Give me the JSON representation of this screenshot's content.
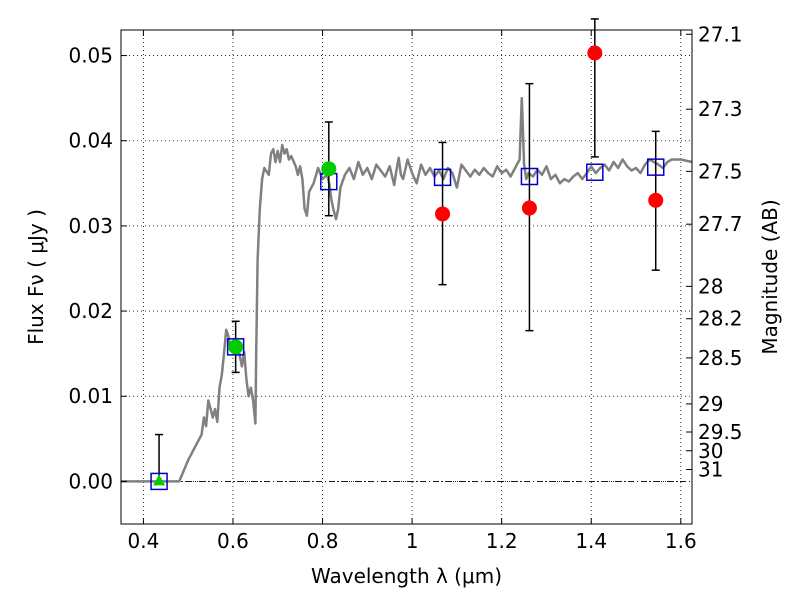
{
  "chart_data": {
    "type": "scatter",
    "xlabel": "Wavelength  λ (μm)",
    "ylabel": "Flux  Fν  ( μJy )",
    "ylabel_right": "Magnitude (AB)",
    "xlim": [
      0.35,
      1.625
    ],
    "ylim": [
      -0.005,
      0.053
    ],
    "grid": true,
    "x_ticks": [
      0.4,
      0.6,
      0.8,
      1.0,
      1.2,
      1.4,
      1.6
    ],
    "x_tick_labels": [
      "0.4",
      "0.6",
      "0.8",
      "1",
      "1.2",
      "1.4",
      "1.6"
    ],
    "y_ticks": [
      0.0,
      0.01,
      0.02,
      0.03,
      0.04,
      0.05
    ],
    "y_tick_labels": [
      "0.00",
      "0.01",
      "0.02",
      "0.03",
      "0.04",
      "0.05"
    ],
    "right_ticks": [
      {
        "label": "27.1",
        "flux": 0.0525
      },
      {
        "label": "27.3",
        "flux": 0.0437
      },
      {
        "label": "27.5",
        "flux": 0.0364
      },
      {
        "label": "27.7",
        "flux": 0.0302
      },
      {
        "label": "28",
        "flux": 0.0229
      },
      {
        "label": "28.2",
        "flux": 0.0191
      },
      {
        "label": "28.5",
        "flux": 0.0145
      },
      {
        "label": "29",
        "flux": 0.0091
      },
      {
        "label": "29.5",
        "flux": 0.0058
      },
      {
        "label": "30",
        "flux": 0.0036
      },
      {
        "label": "31",
        "flux": 0.0014
      }
    ],
    "zero_line": 0.0,
    "model_spectrum": {
      "color": "#808080",
      "points": [
        [
          0.35,
          0.0
        ],
        [
          0.48,
          0.0
        ],
        [
          0.5,
          0.0025
        ],
        [
          0.52,
          0.0045
        ],
        [
          0.53,
          0.0055
        ],
        [
          0.535,
          0.0075
        ],
        [
          0.54,
          0.0065
        ],
        [
          0.545,
          0.0095
        ],
        [
          0.55,
          0.0085
        ],
        [
          0.555,
          0.0075
        ],
        [
          0.56,
          0.0085
        ],
        [
          0.565,
          0.007
        ],
        [
          0.57,
          0.011
        ],
        [
          0.575,
          0.0125
        ],
        [
          0.58,
          0.015
        ],
        [
          0.585,
          0.0178
        ],
        [
          0.59,
          0.017
        ],
        [
          0.595,
          0.0155
        ],
        [
          0.6,
          0.0165
        ],
        [
          0.605,
          0.015
        ],
        [
          0.61,
          0.016
        ],
        [
          0.615,
          0.0148
        ],
        [
          0.62,
          0.0135
        ],
        [
          0.625,
          0.0152
        ],
        [
          0.63,
          0.012
        ],
        [
          0.635,
          0.01
        ],
        [
          0.64,
          0.011
        ],
        [
          0.645,
          0.0095
        ],
        [
          0.65,
          0.0068
        ],
        [
          0.652,
          0.015
        ],
        [
          0.655,
          0.026
        ],
        [
          0.66,
          0.032
        ],
        [
          0.665,
          0.0355
        ],
        [
          0.67,
          0.0368
        ],
        [
          0.68,
          0.036
        ],
        [
          0.685,
          0.0385
        ],
        [
          0.69,
          0.039
        ],
        [
          0.695,
          0.0375
        ],
        [
          0.7,
          0.0388
        ],
        [
          0.705,
          0.0375
        ],
        [
          0.71,
          0.0395
        ],
        [
          0.715,
          0.0385
        ],
        [
          0.72,
          0.039
        ],
        [
          0.725,
          0.0378
        ],
        [
          0.73,
          0.0382
        ],
        [
          0.74,
          0.037
        ],
        [
          0.745,
          0.036
        ],
        [
          0.75,
          0.037
        ],
        [
          0.755,
          0.0355
        ],
        [
          0.76,
          0.032
        ],
        [
          0.765,
          0.0312
        ],
        [
          0.77,
          0.034
        ],
        [
          0.78,
          0.035
        ],
        [
          0.79,
          0.0368
        ],
        [
          0.8,
          0.0355
        ],
        [
          0.81,
          0.036
        ],
        [
          0.815,
          0.035
        ],
        [
          0.82,
          0.033
        ],
        [
          0.825,
          0.0318
        ],
        [
          0.83,
          0.0308
        ],
        [
          0.835,
          0.032
        ],
        [
          0.84,
          0.0345
        ],
        [
          0.85,
          0.036
        ],
        [
          0.86,
          0.0368
        ],
        [
          0.87,
          0.0355
        ],
        [
          0.88,
          0.0375
        ],
        [
          0.89,
          0.036
        ],
        [
          0.9,
          0.0368
        ],
        [
          0.91,
          0.0355
        ],
        [
          0.92,
          0.0372
        ],
        [
          0.93,
          0.0365
        ],
        [
          0.94,
          0.0358
        ],
        [
          0.95,
          0.037
        ],
        [
          0.96,
          0.0348
        ],
        [
          0.965,
          0.0365
        ],
        [
          0.97,
          0.038
        ],
        [
          0.975,
          0.036
        ],
        [
          0.98,
          0.0355
        ],
        [
          0.99,
          0.0378
        ],
        [
          1.0,
          0.0362
        ],
        [
          1.01,
          0.035
        ],
        [
          1.02,
          0.0372
        ],
        [
          1.03,
          0.036
        ],
        [
          1.04,
          0.0368
        ],
        [
          1.05,
          0.0358
        ],
        [
          1.06,
          0.0365
        ],
        [
          1.07,
          0.0355
        ],
        [
          1.08,
          0.0368
        ],
        [
          1.09,
          0.0362
        ],
        [
          1.1,
          0.0345
        ],
        [
          1.11,
          0.0372
        ],
        [
          1.12,
          0.0365
        ],
        [
          1.13,
          0.0358
        ],
        [
          1.14,
          0.0366
        ],
        [
          1.15,
          0.036
        ],
        [
          1.16,
          0.0368
        ],
        [
          1.17,
          0.0362
        ],
        [
          1.18,
          0.0358
        ],
        [
          1.19,
          0.037
        ],
        [
          1.2,
          0.0362
        ],
        [
          1.21,
          0.0366
        ],
        [
          1.22,
          0.0358
        ],
        [
          1.23,
          0.0368
        ],
        [
          1.24,
          0.0378
        ],
        [
          1.245,
          0.045
        ],
        [
          1.25,
          0.0372
        ],
        [
          1.255,
          0.0355
        ],
        [
          1.26,
          0.0362
        ],
        [
          1.27,
          0.0358
        ],
        [
          1.28,
          0.0366
        ],
        [
          1.29,
          0.036
        ],
        [
          1.3,
          0.037
        ],
        [
          1.31,
          0.0355
        ],
        [
          1.32,
          0.036
        ],
        [
          1.33,
          0.035
        ],
        [
          1.34,
          0.0355
        ],
        [
          1.35,
          0.0352
        ],
        [
          1.36,
          0.0358
        ],
        [
          1.37,
          0.0362
        ],
        [
          1.38,
          0.0355
        ],
        [
          1.39,
          0.0362
        ],
        [
          1.4,
          0.037
        ],
        [
          1.41,
          0.0362
        ],
        [
          1.42,
          0.0368
        ],
        [
          1.43,
          0.0372
        ],
        [
          1.44,
          0.0365
        ],
        [
          1.45,
          0.0375
        ],
        [
          1.46,
          0.0368
        ],
        [
          1.47,
          0.0378
        ],
        [
          1.48,
          0.037
        ],
        [
          1.49,
          0.0365
        ],
        [
          1.5,
          0.0368
        ],
        [
          1.51,
          0.0362
        ],
        [
          1.52,
          0.0372
        ],
        [
          1.53,
          0.0378
        ],
        [
          1.54,
          0.0375
        ],
        [
          1.55,
          0.0372
        ],
        [
          1.56,
          0.0368
        ],
        [
          1.57,
          0.0375
        ],
        [
          1.58,
          0.0378
        ],
        [
          1.6,
          0.0378
        ],
        [
          1.625,
          0.0375
        ]
      ]
    },
    "model_photometry": {
      "color": "#0000cc",
      "points": [
        [
          0.435,
          0.0
        ],
        [
          0.606,
          0.0158
        ],
        [
          0.814,
          0.0352
        ],
        [
          1.068,
          0.0357
        ],
        [
          1.262,
          0.0358
        ],
        [
          1.408,
          0.0363
        ],
        [
          1.544,
          0.0369
        ]
      ]
    },
    "detections": {
      "color": "#00cc00",
      "points": [
        {
          "x": 0.606,
          "y": 0.0158,
          "err_low": 0.003,
          "err_high": 0.003
        },
        {
          "x": 0.814,
          "y": 0.0367,
          "err_low": 0.0055,
          "err_high": 0.0055
        }
      ]
    },
    "upper_limits": {
      "color": "#00cc00",
      "points": [
        {
          "x": 0.435,
          "y": 0.0,
          "err_low": 0.0,
          "err_high": 0.0055
        }
      ]
    },
    "ir_photometry": {
      "color": "#ff0000",
      "points": [
        {
          "x": 1.068,
          "y": 0.0314,
          "err_low": 0.0083,
          "err_high": 0.0084
        },
        {
          "x": 1.262,
          "y": 0.0321,
          "err_low": 0.0144,
          "err_high": 0.0146
        },
        {
          "x": 1.408,
          "y": 0.0503,
          "err_low": 0.0122,
          "err_high": 0.004
        },
        {
          "x": 1.544,
          "y": 0.033,
          "err_low": 0.0082,
          "err_high": 0.0081
        }
      ]
    }
  }
}
